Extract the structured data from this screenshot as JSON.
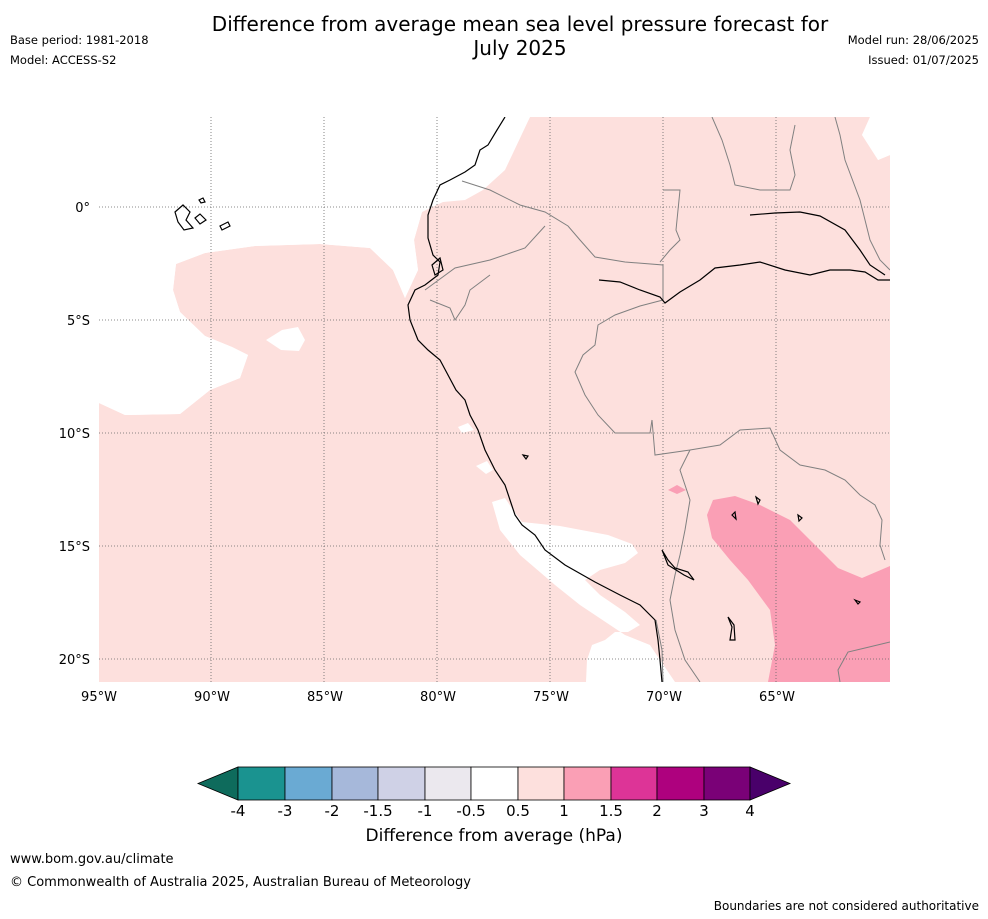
{
  "header": {
    "title_line1": "Difference from average mean sea level pressure forecast for",
    "title_line2": "July 2025",
    "base_period": "Base period: 1981-2018",
    "model": "Model: ACCESS-S2",
    "model_run": "Model run: 28/06/2025",
    "issued": "Issued: 01/07/2025"
  },
  "map": {
    "lon_ticks": [
      {
        "value": -95,
        "label": "95°W"
      },
      {
        "value": -90,
        "label": "90°W"
      },
      {
        "value": -85,
        "label": "85°W"
      },
      {
        "value": -80,
        "label": "80°W"
      },
      {
        "value": -75,
        "label": "75°W"
      },
      {
        "value": -70,
        "label": "70°W"
      },
      {
        "value": -65,
        "label": "65°W"
      }
    ],
    "lat_ticks": [
      {
        "value": 0,
        "label": "0°"
      },
      {
        "value": -5,
        "label": "5°S"
      },
      {
        "value": -10,
        "label": "10°S"
      },
      {
        "value": -15,
        "label": "15°S"
      },
      {
        "value": -20,
        "label": "20°S"
      }
    ],
    "colors": {
      "anomaly_0_5_to_1": "#fde0dd",
      "anomaly_1_to_1_5": "#fa9fb5",
      "coast": "#000000",
      "borders": "#808080",
      "gridlines": "#666666"
    }
  },
  "colorbar": {
    "title": "Difference from average (hPa)",
    "tick_labels": [
      "-4",
      "-3",
      "-2",
      "-1.5",
      "-1",
      "-0.5",
      "0.5",
      "1",
      "1.5",
      "2",
      "3",
      "4"
    ],
    "colors": [
      "#1a9390",
      "#6aaad3",
      "#a6b8da",
      "#cfd1e6",
      "#ebe8ee",
      "#ffffff",
      "#fde0dd",
      "#fa9fb5",
      "#dd3497",
      "#ae017e",
      "#7a0177"
    ],
    "under_color": "#0e6b5c",
    "over_color": "#49006a"
  },
  "footer": {
    "url": "www.bom.gov.au/climate",
    "copyright": "© Commonwealth of Australia 2025, Australian Bureau of Meteorology",
    "note": "Boundaries are not considered authoritative"
  }
}
